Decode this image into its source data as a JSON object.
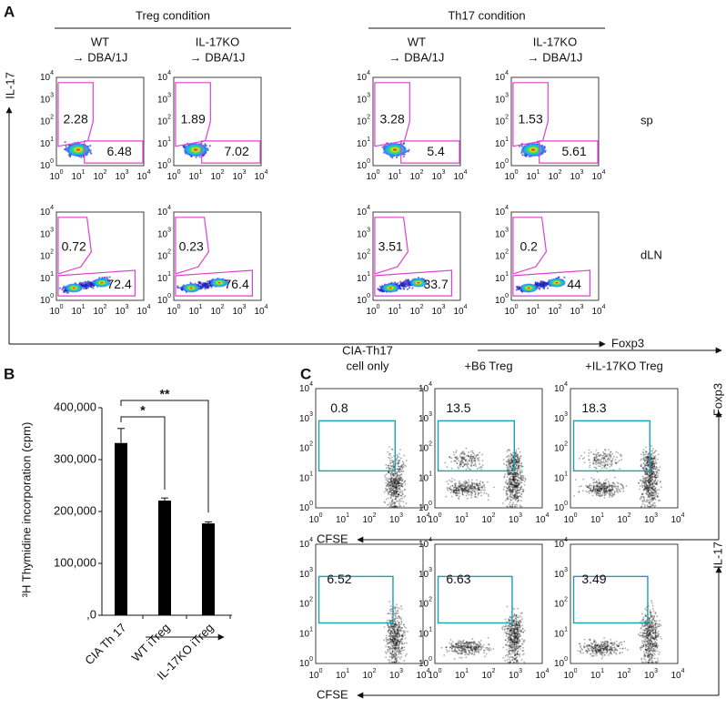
{
  "panel_a": {
    "label": "A",
    "groups": [
      "Treg condition",
      "Th17 condition"
    ],
    "columns": [
      {
        "line1": "WT",
        "line2": "→ DBA/1J"
      },
      {
        "line1": "IL-17KO",
        "line2": "→ DBA/1J"
      },
      {
        "line1": "WT",
        "line2": "→ DBA/1J"
      },
      {
        "line1": "IL-17KO",
        "line2": "→ DBA/1J"
      }
    ],
    "rows": [
      "sp",
      "dLN"
    ],
    "plots": [
      [
        [
          2.28,
          6.48
        ],
        [
          1.89,
          7.02
        ],
        [
          3.28,
          5.4
        ],
        [
          1.53,
          5.61
        ]
      ],
      [
        [
          0.72,
          72.4
        ],
        [
          0.23,
          76.4
        ],
        [
          3.51,
          33.7
        ],
        [
          0.2,
          44
        ]
      ]
    ],
    "y_axis": "IL-17",
    "x_axis": "Foxp3"
  },
  "decade_ticks": {
    "base": "10",
    "exponents": [
      "0",
      "1",
      "2",
      "3",
      "4"
    ]
  },
  "chart_data": {
    "type": "bar",
    "label": "B",
    "ylabel": "³H Thymidine incorporation (cpm)",
    "categories": [
      "CIA Th 17",
      "WT iTreg",
      "IL-17KO iTreg"
    ],
    "values": [
      332000,
      221000,
      177000
    ],
    "errors": [
      28000,
      5000,
      3000
    ],
    "color": "#000000",
    "ylim": [
      0,
      400000
    ],
    "yticks": [
      {
        "value": 0,
        "label": ",0"
      },
      {
        "value": 100000,
        "label": "100,000"
      },
      {
        "value": 200000,
        "label": "200,000"
      },
      {
        "value": 300000,
        "label": "300,000"
      },
      {
        "value": 400000,
        "label": "400,000"
      }
    ],
    "annotations": [
      "*",
      "**"
    ]
  },
  "panel_c": {
    "label": "C",
    "columns": [
      [
        "CIA-Th17",
        "cell only"
      ],
      [
        "+B6 Treg"
      ],
      [
        "+IL-17KO Treg"
      ]
    ],
    "rows": [
      {
        "y_axis": "Foxp3",
        "x_axis": "CFSE",
        "values": [
          0.8,
          13.5,
          18.3
        ]
      },
      {
        "y_axis": "IL-17",
        "x_axis": "CFSE",
        "values": [
          6.52,
          6.63,
          3.49
        ]
      }
    ]
  }
}
